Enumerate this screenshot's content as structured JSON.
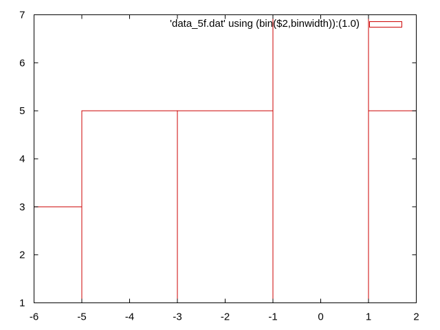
{
  "chart_data": {
    "type": "bar",
    "style": "histogram-boxes-unfilled",
    "title": "",
    "xlabel": "",
    "ylabel": "",
    "xlim": [
      -6,
      2
    ],
    "ylim": [
      1,
      7
    ],
    "x_ticks": [
      "-6",
      "-5",
      "-4",
      "-3",
      "-2",
      "-1",
      "0",
      "1",
      "2"
    ],
    "y_ticks": [
      "1",
      "2",
      "3",
      "4",
      "5",
      "6",
      "7"
    ],
    "grid": false,
    "legend_position": "top-right",
    "series": [
      {
        "name": "'data_5f.dat' using (bin($2,binwidth)):(1.0)",
        "color": "#cc0000",
        "bins": [
          {
            "x0": -7,
            "x1": -5,
            "value": 3
          },
          {
            "x0": -5,
            "x1": -3,
            "value": 5
          },
          {
            "x0": -3,
            "x1": -1,
            "value": 5
          },
          {
            "x0": -1,
            "x1": 1,
            "value": 7
          },
          {
            "x0": 1,
            "x1": 3,
            "value": 5
          }
        ]
      }
    ]
  }
}
